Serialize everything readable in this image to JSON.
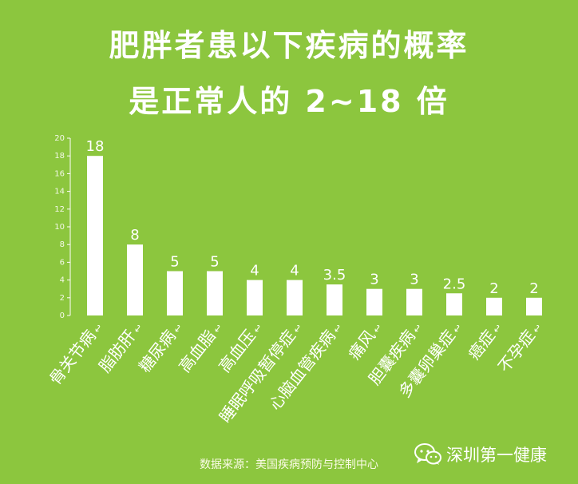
{
  "header": {
    "title_line1": "肥胖者患以下疾病的概率",
    "title_line2": "是正常人的 2~18 倍"
  },
  "chart_data": {
    "type": "bar",
    "categories": [
      "骨关节病",
      "脂肪肝",
      "糖尿病",
      "高血脂",
      "高血压",
      "睡眠呼吸暂停症",
      "心脑血管疾病",
      "痛风",
      "胆囊疾病",
      "多囊卵巢症",
      "癌症",
      "不孕症"
    ],
    "values": [
      18,
      8,
      5,
      5,
      4,
      4,
      3.5,
      3,
      3,
      2.5,
      2,
      2
    ],
    "data_labels": [
      "18",
      "8",
      "5",
      "5",
      "4",
      "4",
      "3.5",
      "3",
      "3",
      "2.5",
      "2",
      "2"
    ],
    "yticks": [
      0,
      2,
      4,
      6,
      8,
      10,
      12,
      14,
      16,
      18,
      20
    ],
    "ylim": [
      0,
      20
    ],
    "category_suffix": "↩",
    "grid": false,
    "bar_color": "#ffffff",
    "background_color": "#8cc63e"
  },
  "footer": {
    "source": "数据来源：美国疾病预防与控制中心",
    "brand_name": "深圳第一健康",
    "brand_icon": "wechat-icon"
  }
}
